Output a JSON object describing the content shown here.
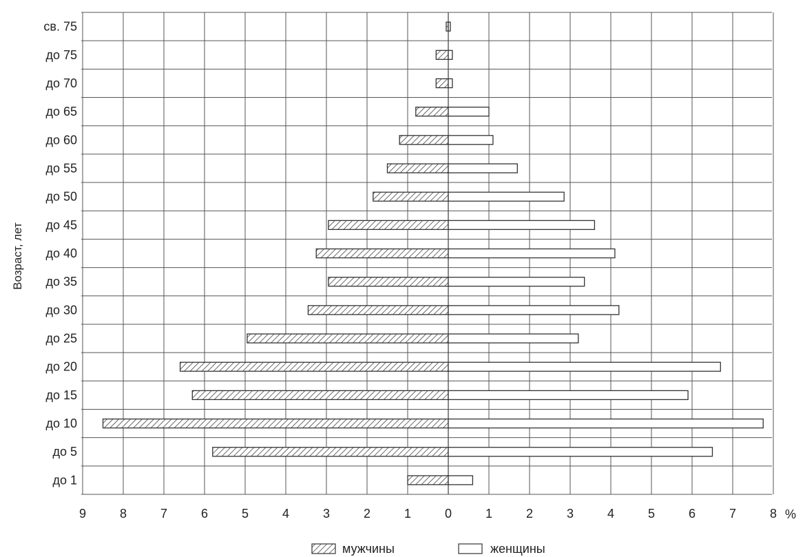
{
  "chart_data": {
    "type": "bar",
    "orientation": "horizontal",
    "ylabel": "Возраст, лет",
    "xunit": "%",
    "categories": [
      "св. 75",
      "до 75",
      "до 70",
      "до 65",
      "до 60",
      "до 55",
      "до 50",
      "до 45",
      "до 40",
      "до 35",
      "до 30",
      "до 25",
      "до 20",
      "до 15",
      "до 10",
      "до 5",
      "до 1"
    ],
    "series": [
      {
        "name": "мужчины",
        "pattern": "hatched",
        "values": [
          0.05,
          0.3,
          0.3,
          0.8,
          1.2,
          1.5,
          1.85,
          2.95,
          3.25,
          2.95,
          3.45,
          4.95,
          6.6,
          6.3,
          8.5,
          5.8,
          1.0
        ]
      },
      {
        "name": "женщины",
        "pattern": "plain",
        "values": [
          0.05,
          0.1,
          0.1,
          1.0,
          1.1,
          1.7,
          2.85,
          3.6,
          4.1,
          3.35,
          4.2,
          3.2,
          6.7,
          5.9,
          7.75,
          6.5,
          0.6
        ]
      }
    ],
    "xticks": {
      "left": [
        "9",
        "8",
        "7",
        "6",
        "5",
        "4",
        "3",
        "2",
        "1",
        "0"
      ],
      "right": [
        "1",
        "2",
        "3",
        "4",
        "5",
        "6",
        "7",
        "8"
      ]
    },
    "xlim": [
      -9,
      8
    ],
    "grid": true,
    "legend_position": "bottom-center",
    "colors": {
      "bar_fill": "#ffffff",
      "bar_stroke": "#333333",
      "grid": "#555555",
      "hatch": "#444444"
    }
  }
}
